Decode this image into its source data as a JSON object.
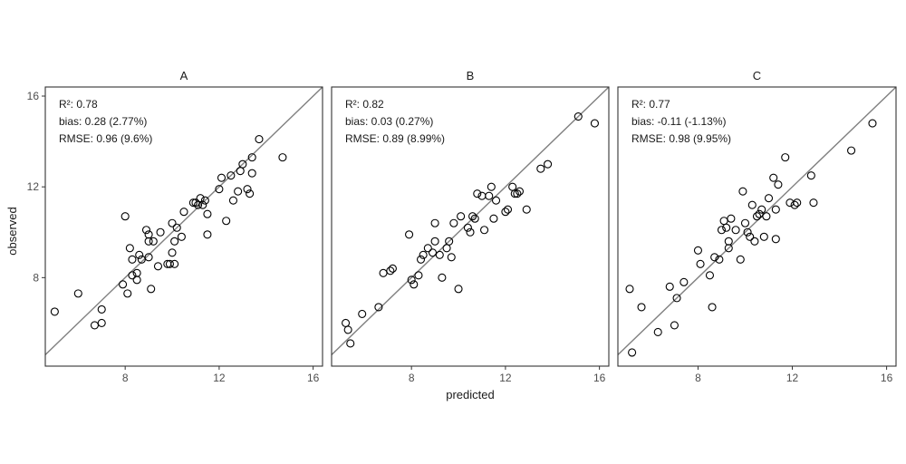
{
  "figure": {
    "xlabel": "predicted",
    "ylabel": "observed",
    "colors": {
      "panel_border": "#333333",
      "identity_line": "#808080",
      "point_stroke": "#000000",
      "tick": "#333333",
      "text": "#1a1a1a"
    }
  },
  "chart_data": [
    {
      "type": "scatter",
      "panel": "A",
      "xlim": [
        4.6,
        16.4
      ],
      "ylim": [
        4.1,
        16.4
      ],
      "xticks": [
        8,
        12,
        16
      ],
      "yticks": [
        8,
        12,
        16
      ],
      "identity_line": true,
      "stats": [
        "R²: 0.78",
        "bias: 0.28 (2.77%)",
        "RMSE: 0.96 (9.6%)"
      ],
      "x": [
        5.0,
        6.0,
        6.7,
        7.0,
        7.0,
        7.9,
        8.0,
        8.1,
        8.2,
        8.3,
        8.3,
        8.5,
        8.5,
        8.6,
        8.7,
        8.9,
        9.0,
        9.0,
        9.0,
        9.1,
        9.2,
        9.4,
        9.5,
        9.8,
        9.9,
        10.0,
        10.0,
        10.1,
        10.1,
        10.2,
        10.4,
        10.5,
        10.9,
        11.0,
        11.1,
        11.2,
        11.3,
        11.4,
        11.5,
        11.5,
        12.0,
        12.1,
        12.3,
        12.5,
        12.6,
        12.8,
        12.9,
        13.0,
        13.2,
        13.3,
        13.4,
        13.4,
        13.7,
        14.7
      ],
      "y": [
        6.5,
        7.3,
        5.9,
        6.6,
        6.0,
        7.7,
        10.7,
        7.3,
        9.3,
        8.8,
        8.1,
        8.2,
        7.9,
        9.0,
        8.8,
        10.1,
        9.6,
        9.9,
        8.9,
        7.5,
        9.6,
        8.5,
        10.0,
        8.6,
        8.6,
        10.4,
        9.1,
        9.6,
        8.6,
        10.2,
        9.8,
        10.9,
        11.3,
        11.3,
        11.2,
        11.5,
        11.2,
        11.4,
        10.8,
        9.9,
        11.9,
        12.4,
        10.5,
        12.5,
        11.4,
        11.8,
        12.7,
        13.0,
        11.9,
        11.7,
        13.3,
        12.6,
        14.1,
        13.3
      ]
    },
    {
      "type": "scatter",
      "panel": "B",
      "xlim": [
        4.6,
        16.4
      ],
      "ylim": [
        4.1,
        16.4
      ],
      "xticks": [
        8,
        12,
        16
      ],
      "yticks": [
        8,
        12,
        16
      ],
      "identity_line": true,
      "stats": [
        "R²: 0.82",
        "bias: 0.03 (0.27%)",
        "RMSE: 0.89 (8.99%)"
      ],
      "x": [
        5.2,
        5.3,
        5.4,
        5.9,
        6.6,
        6.8,
        7.1,
        7.2,
        7.9,
        8.0,
        8.1,
        8.3,
        8.4,
        8.5,
        8.7,
        8.9,
        9.0,
        9.0,
        9.2,
        9.3,
        9.5,
        9.6,
        9.7,
        9.8,
        10.0,
        10.1,
        10.4,
        10.5,
        10.6,
        10.7,
        10.8,
        11.0,
        11.1,
        11.3,
        11.4,
        11.5,
        11.6,
        12.0,
        12.1,
        12.3,
        12.4,
        12.5,
        12.6,
        12.9,
        13.5,
        13.8,
        15.1,
        15.8
      ],
      "y": [
        6.0,
        5.7,
        5.1,
        6.4,
        6.7,
        8.2,
        8.3,
        8.4,
        9.9,
        7.9,
        7.7,
        8.1,
        8.8,
        9.0,
        9.3,
        9.1,
        9.6,
        10.4,
        9.0,
        8.0,
        9.3,
        9.6,
        8.9,
        10.4,
        7.5,
        10.7,
        10.2,
        10.0,
        10.7,
        10.6,
        11.7,
        11.6,
        10.1,
        11.6,
        12.0,
        10.6,
        11.4,
        10.9,
        11.0,
        12.0,
        11.7,
        11.7,
        11.8,
        11.0,
        12.8,
        13.0,
        15.1,
        14.8
      ]
    },
    {
      "type": "scatter",
      "panel": "C",
      "xlim": [
        4.6,
        16.4
      ],
      "ylim": [
        4.1,
        16.4
      ],
      "xticks": [
        8,
        12,
        16
      ],
      "yticks": [
        8,
        12,
        16
      ],
      "identity_line": true,
      "stats": [
        "R²: 0.77",
        "bias: -0.11 (-1.13%)",
        "RMSE: 0.98 (9.95%)"
      ],
      "x": [
        5.1,
        5.2,
        5.6,
        6.3,
        6.8,
        7.0,
        7.1,
        7.4,
        8.0,
        8.1,
        8.5,
        8.6,
        8.7,
        8.9,
        9.0,
        9.1,
        9.2,
        9.3,
        9.3,
        9.4,
        9.6,
        9.8,
        9.9,
        10.0,
        10.1,
        10.2,
        10.3,
        10.4,
        10.5,
        10.6,
        10.7,
        10.8,
        10.9,
        11.0,
        11.2,
        11.3,
        11.3,
        11.4,
        11.7,
        11.9,
        12.1,
        12.2,
        12.8,
        12.9,
        14.5,
        15.4
      ],
      "y": [
        7.5,
        4.7,
        6.7,
        5.6,
        7.6,
        5.9,
        7.1,
        7.8,
        9.2,
        8.6,
        8.1,
        6.7,
        8.9,
        8.8,
        10.1,
        10.5,
        10.2,
        9.3,
        9.6,
        10.6,
        10.1,
        8.8,
        11.8,
        10.4,
        10.0,
        9.8,
        11.2,
        9.6,
        10.7,
        10.8,
        11.0,
        9.8,
        10.7,
        11.5,
        12.4,
        11.0,
        9.7,
        12.1,
        13.3,
        11.3,
        11.2,
        11.3,
        12.5,
        11.3,
        13.6,
        14.8
      ]
    }
  ]
}
